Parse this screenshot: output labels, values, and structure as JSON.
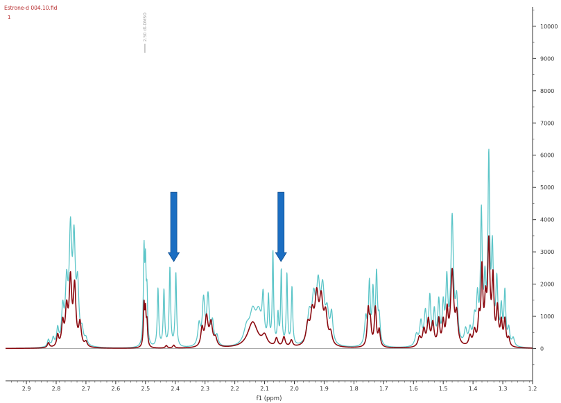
{
  "header": {
    "file_title": "Estrone-d 004.10.fid",
    "trace_index": "1"
  },
  "chart_data": {
    "type": "line",
    "xlabel": "f1 (ppm)",
    "ylabel": "",
    "x_reversed": true,
    "xlim": [
      2.97,
      1.2
    ],
    "ylim": [
      -1000,
      10600
    ],
    "x_ticks": [
      "2.9",
      "2.8",
      "2.7",
      "2.6",
      "2.5",
      "2.4",
      "2.3",
      "2.2",
      "2.1",
      "2.0",
      "1.9",
      "1.8",
      "1.7",
      "1.6",
      "1.5",
      "1.4",
      "1.3",
      "1.2"
    ],
    "y_ticks": [
      "0",
      "1000",
      "2000",
      "3000",
      "4000",
      "5000",
      "6000",
      "7000",
      "8000",
      "9000",
      "10000"
    ],
    "peak_annotation": {
      "label": "2.50 dt-DMSO",
      "x": 2.502
    },
    "arrows": [
      {
        "label": "",
        "x": 2.405,
        "from_y": 4850,
        "to_y": 2700,
        "color": "#1b6ec2"
      },
      {
        "label": "",
        "x": 2.045,
        "from_y": 4850,
        "to_y": 2700,
        "color": "#1b6ec2"
      }
    ],
    "colors": {
      "cyan_trace": "#5cc5c8",
      "red_trace": "#8b0a10",
      "axis": "#333333",
      "zero_line": "#aaaaaa"
    },
    "series": [
      {
        "color": "#5cc5c8",
        "peaks": [
          [
            2.826,
            220,
            0.004
          ],
          [
            2.81,
            250,
            0.004
          ],
          [
            2.795,
            500,
            0.004
          ],
          [
            2.778,
            1050,
            0.0045
          ],
          [
            2.765,
            1750,
            0.005
          ],
          [
            2.752,
            3300,
            0.005
          ],
          [
            2.74,
            3000,
            0.005
          ],
          [
            2.728,
            1700,
            0.005
          ],
          [
            2.713,
            400,
            0.005
          ],
          [
            2.7,
            200,
            0.005
          ],
          [
            2.505,
            2800,
            0.0025
          ],
          [
            2.5,
            2200,
            0.0025
          ],
          [
            2.495,
            1500,
            0.0025
          ],
          [
            2.458,
            1800,
            0.0028
          ],
          [
            2.438,
            1750,
            0.0028
          ],
          [
            2.418,
            2450,
            0.0028
          ],
          [
            2.398,
            2300,
            0.0028
          ],
          [
            2.32,
            650,
            0.005
          ],
          [
            2.305,
            1400,
            0.005
          ],
          [
            2.29,
            1500,
            0.005
          ],
          [
            2.275,
            700,
            0.005
          ],
          [
            2.26,
            300,
            0.005
          ],
          [
            2.16,
            500,
            0.012
          ],
          [
            2.14,
            900,
            0.012
          ],
          [
            2.12,
            900,
            0.012
          ],
          [
            2.105,
            1300,
            0.004
          ],
          [
            2.087,
            1400,
            0.0028
          ],
          [
            2.072,
            2850,
            0.0025
          ],
          [
            2.055,
            900,
            0.0028
          ],
          [
            2.044,
            2300,
            0.0025
          ],
          [
            2.025,
            2200,
            0.0025
          ],
          [
            2.008,
            1800,
            0.0028
          ],
          [
            1.95,
            900,
            0.008
          ],
          [
            1.935,
            1250,
            0.007
          ],
          [
            1.92,
            1650,
            0.007
          ],
          [
            1.905,
            1550,
            0.007
          ],
          [
            1.89,
            900,
            0.007
          ],
          [
            1.875,
            900,
            0.005
          ],
          [
            1.76,
            850,
            0.005
          ],
          [
            1.748,
            1850,
            0.0035
          ],
          [
            1.736,
            1600,
            0.0035
          ],
          [
            1.724,
            2150,
            0.0035
          ],
          [
            1.715,
            800,
            0.004
          ],
          [
            1.59,
            350,
            0.006
          ],
          [
            1.575,
            700,
            0.005
          ],
          [
            1.56,
            1000,
            0.005
          ],
          [
            1.545,
            1450,
            0.004
          ],
          [
            1.53,
            1000,
            0.004
          ],
          [
            1.515,
            1300,
            0.004
          ],
          [
            1.5,
            1150,
            0.004
          ],
          [
            1.488,
            1900,
            0.004
          ],
          [
            1.47,
            3900,
            0.005
          ],
          [
            1.455,
            1300,
            0.005
          ],
          [
            1.425,
            450,
            0.005
          ],
          [
            1.41,
            450,
            0.005
          ],
          [
            1.395,
            750,
            0.005
          ],
          [
            1.385,
            1300,
            0.004
          ],
          [
            1.372,
            3950,
            0.0035
          ],
          [
            1.36,
            1700,
            0.004
          ],
          [
            1.347,
            5600,
            0.0035
          ],
          [
            1.335,
            2800,
            0.004
          ],
          [
            1.32,
            1900,
            0.004
          ],
          [
            1.305,
            1100,
            0.004
          ],
          [
            1.293,
            1600,
            0.0035
          ],
          [
            1.28,
            500,
            0.004
          ],
          [
            1.265,
            250,
            0.005
          ]
        ]
      },
      {
        "color": "#8b0a10",
        "peaks": [
          [
            2.826,
            150,
            0.004
          ],
          [
            2.795,
            350,
            0.004
          ],
          [
            2.778,
            700,
            0.0045
          ],
          [
            2.765,
            1100,
            0.005
          ],
          [
            2.752,
            2000,
            0.005
          ],
          [
            2.738,
            1800,
            0.005
          ],
          [
            2.72,
            700,
            0.005
          ],
          [
            2.7,
            150,
            0.005
          ],
          [
            2.505,
            1250,
            0.0025
          ],
          [
            2.5,
            1000,
            0.0025
          ],
          [
            2.495,
            700,
            0.0025
          ],
          [
            2.43,
            80,
            0.004
          ],
          [
            2.405,
            90,
            0.004
          ],
          [
            2.31,
            550,
            0.005
          ],
          [
            2.295,
            900,
            0.006
          ],
          [
            2.28,
            700,
            0.006
          ],
          [
            2.265,
            250,
            0.006
          ],
          [
            2.14,
            800,
            0.02
          ],
          [
            2.1,
            300,
            0.01
          ],
          [
            2.06,
            250,
            0.005
          ],
          [
            2.035,
            300,
            0.005
          ],
          [
            2.01,
            200,
            0.005
          ],
          [
            1.955,
            600,
            0.007
          ],
          [
            1.94,
            900,
            0.007
          ],
          [
            1.925,
            1400,
            0.007
          ],
          [
            1.91,
            1300,
            0.007
          ],
          [
            1.895,
            900,
            0.007
          ],
          [
            1.878,
            350,
            0.006
          ],
          [
            1.752,
            1100,
            0.004
          ],
          [
            1.745,
            700,
            0.004
          ],
          [
            1.728,
            1200,
            0.004
          ],
          [
            1.715,
            500,
            0.004
          ],
          [
            1.58,
            300,
            0.006
          ],
          [
            1.565,
            500,
            0.005
          ],
          [
            1.55,
            800,
            0.005
          ],
          [
            1.535,
            700,
            0.005
          ],
          [
            1.515,
            800,
            0.004
          ],
          [
            1.5,
            700,
            0.004
          ],
          [
            1.487,
            1000,
            0.004
          ],
          [
            1.47,
            2300,
            0.006
          ],
          [
            1.455,
            900,
            0.005
          ],
          [
            1.41,
            300,
            0.005
          ],
          [
            1.395,
            450,
            0.005
          ],
          [
            1.38,
            800,
            0.004
          ],
          [
            1.37,
            2300,
            0.0035
          ],
          [
            1.358,
            1200,
            0.004
          ],
          [
            1.347,
            3100,
            0.0045
          ],
          [
            1.333,
            2000,
            0.004
          ],
          [
            1.318,
            1100,
            0.004
          ],
          [
            1.305,
            700,
            0.004
          ],
          [
            1.293,
            800,
            0.004
          ],
          [
            1.28,
            250,
            0.004
          ]
        ]
      }
    ]
  }
}
